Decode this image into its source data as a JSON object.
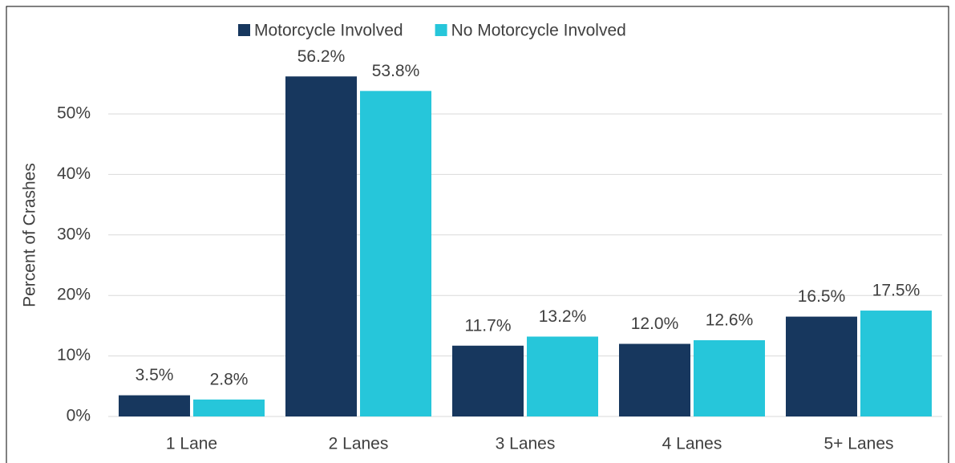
{
  "chart_data": {
    "type": "bar",
    "y_label": "Percent of Crashes",
    "categories": [
      "1 Lane",
      "2 Lanes",
      "3 Lanes",
      "4 Lanes",
      "5+ Lanes"
    ],
    "series": [
      {
        "name": "Motorcycle Involved",
        "color": "#17375e",
        "values": [
          3.5,
          56.2,
          11.7,
          12.0,
          16.5
        ],
        "value_labels": [
          "3.5%",
          "56.2%",
          "11.7%",
          "12.0%",
          "16.5%"
        ]
      },
      {
        "name": "No Motorcycle Involved",
        "color": "#26c6da",
        "values": [
          2.8,
          53.8,
          13.2,
          12.6,
          17.5
        ],
        "value_labels": [
          "2.8%",
          "53.8%",
          "13.2%",
          "12.6%",
          "17.5%"
        ]
      }
    ],
    "ylim": [
      0,
      60
    ],
    "yticks": [
      {
        "value": 0,
        "label": "0%"
      },
      {
        "value": 10,
        "label": "10%"
      },
      {
        "value": 20,
        "label": "20%"
      },
      {
        "value": 30,
        "label": "30%"
      },
      {
        "value": 40,
        "label": "40%"
      },
      {
        "value": 50,
        "label": "50%"
      }
    ],
    "grid": true,
    "legend": "top"
  }
}
